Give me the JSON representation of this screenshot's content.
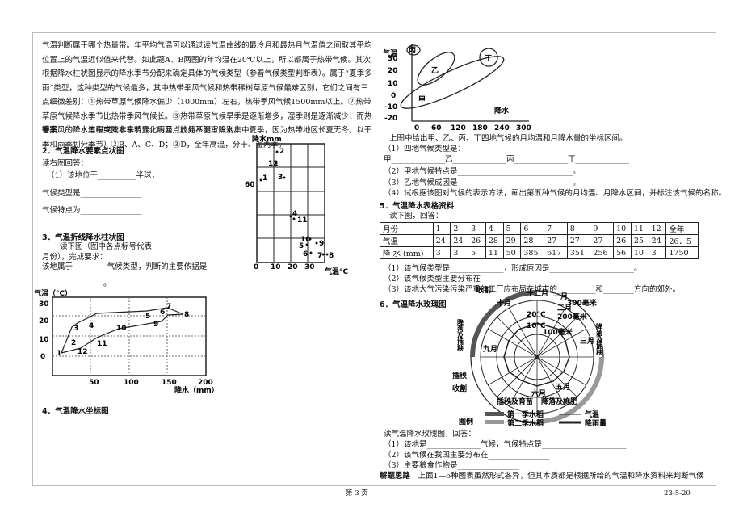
{
  "intro": {
    "paragraph": "气温判断属于哪个热量带。年平均气温可以通过读气温曲线的最冷月和最热月气温值之间取其平均位置上的气温近似值来代替。如此题A、B两图的年均温在20℃以上，所以都属于热带气候。其次根据降水柱状图显示的降水季节分配来确定具体的气候类型（参看气候类型判断表）。属于“夏季多雨”类型，这种类型的气候最多，其中热带季风气候和热带稀树草原气候最难区别，它们之间有三点细微差别：①热带草原气候降水偏少（1000mm）左右，热带季风气候1500mm以上。②热带草原气候降水季节比热带季风气候长。③热带草原气候旱季是逐渐增多，湿季则是逐渐减少；而热带季风的降水过程突变非常明显。后两点较易从图上识别。",
    "answer_label": "答案：",
    "answer": "①降水集中或降水季节变化明显（此处不能写降水集中夏季，因为热带地区长夏无冬，以干季和雨季划分季节）②B、A、C、D；③D，全年高温，分干、湿两季。"
  },
  "section2": {
    "heading": "2．气温降水要素点状图",
    "lines": [
      "读右图回答：",
      "（1）该地位于__________半球，",
      "气候类型是________________",
      "气候特点为________________",
      "________________"
    ],
    "figure": {
      "y_label": "降水mm",
      "x_label": "气温°C",
      "y_ticks": [
        "60"
      ],
      "x_ticks": [
        "0",
        "10",
        "20",
        "30"
      ],
      "points": [
        "2",
        "12",
        "1",
        "3",
        "4",
        "11",
        "10",
        "5",
        "9",
        "6",
        "7",
        "8"
      ]
    }
  },
  "section3": {
    "heading": "3．气温折线降水柱状图",
    "lines": [
      "读下图（图中各点标号代表",
      "月份），完成要求：",
      "该地属于_________气候类型，判断的主要依据是__________________________________",
      "________________。"
    ],
    "figure": {
      "y_label": "气温（°C）",
      "x_label": "降水（mm）",
      "y_ticks": [
        "30",
        "20",
        "10",
        "0"
      ],
      "x_ticks": [
        "50",
        "100",
        "150",
        "200"
      ],
      "points": [
        "7",
        "8",
        "6",
        "5",
        "9",
        "4",
        "3",
        "10",
        "11",
        "2",
        "12",
        "1"
      ]
    }
  },
  "section4": {
    "heading": "4．气温降水坐标图"
  },
  "right_figure": {
    "y_label": "气温",
    "x_label": "降水",
    "y_ticks": [
      "30",
      "20",
      "10",
      "0",
      "-10",
      "-20"
    ],
    "x_ticks": [
      "0",
      "60",
      "120",
      "180",
      "240",
      "300"
    ],
    "regions": [
      "丙",
      "乙",
      "丁",
      "甲"
    ]
  },
  "right_questions": [
    "上图中给出甲、乙、丙、丁四地气候的月均温和月降水量的坐标区间。",
    "（1）四地气候类型是：",
    "甲______________乙______________丙______________丁______________",
    "（2）甲地气候特点是______________________________。",
    "（3）乙地气候成因是______________________________。",
    "（4）试根据该图对气候的表示方法，画出第五种气候的月均温、月降水区间，并标注该气候的名称。"
  ],
  "section5": {
    "heading": "5．气温降水表格资料",
    "intro": "读下图，回答：",
    "table": {
      "rows": [
        [
          "月份",
          "1",
          "2",
          "3",
          "4",
          "5",
          "6",
          "7",
          "8",
          "9",
          "10",
          "11",
          "12",
          "全年"
        ],
        [
          "气温",
          "24",
          "24",
          "26",
          "28",
          "29",
          "28",
          "27",
          "27",
          "27",
          "26",
          "25",
          "24",
          "26．5"
        ],
        [
          "降 水 (mm)",
          "3",
          "3",
          "5",
          "11",
          "50",
          "385",
          "617",
          "351",
          "256",
          "56",
          "10",
          "3",
          "1750"
        ]
      ]
    },
    "questions": [
      "（1）该气候类型是______________，形成原因是______________________。",
      "（2）该气候类型主要分布在______________________",
      "（3）该地大气污染污染严重的工厂应布局在城市的__________和________方向的郊外。"
    ]
  },
  "section6": {
    "heading": "6．气温降水玫瑰图",
    "rose_labels": [
      "收割",
      "十二月",
      "一月",
      "十月",
      "二月",
      "300毫米",
      "20°C",
      "200毫米",
      "10°C",
      "100毫米",
      "九月",
      "三月",
      "降落及插秧",
      "降落及插秧",
      "六月",
      "五月",
      "插秧",
      "收割",
      "插秧及育苗",
      "降落及施肥"
    ],
    "legend": {
      "title": "图例",
      "items": [
        "第一季水稻",
        "第二季水稻",
        "气温",
        "降雨量"
      ]
    },
    "intro": "读气温降水玫瑰图，回答：",
    "questions": [
      "（1）该地是______________气候，气候特点是______________________",
      "（2）该气候在我国主要分布在________________",
      "（3）主要粮食作物是________________"
    ]
  },
  "conclusion": {
    "label": "解题思路",
    "text": "上面1—6种图表虽然形式各异，但其本质都是根据所给的气温和降水资料来判断气候"
  },
  "footer": {
    "page": "第 3 页",
    "date": "23-5-20"
  }
}
